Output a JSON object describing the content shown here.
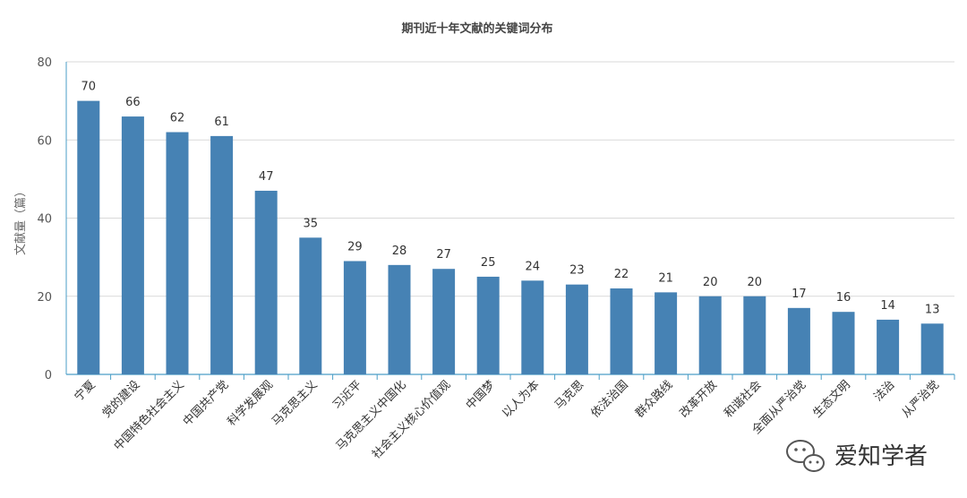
{
  "chart_data": {
    "type": "bar",
    "title": "期刊近十年文献的关键词分布",
    "ylabel": "文献量（篇）",
    "xlabel": "",
    "ylim": [
      0,
      80
    ],
    "yticks": [
      0,
      20,
      40,
      60,
      80
    ],
    "grid": true,
    "bar_color": "#4682b4",
    "categories": [
      "宁夏",
      "党的建设",
      "中国特色社会主义",
      "中国共产党",
      "科学发展观",
      "马克思主义",
      "习近平",
      "马克思主义中国化",
      "社会主义核心价值观",
      "中国梦",
      "以人为本",
      "马克思",
      "依法治国",
      "群众路线",
      "改革开放",
      "和谐社会",
      "全面从严治党",
      "生态文明",
      "法治",
      "从严治党"
    ],
    "values": [
      70,
      66,
      62,
      61,
      47,
      35,
      29,
      28,
      27,
      25,
      24,
      23,
      22,
      21,
      20,
      20,
      17,
      16,
      14,
      13
    ]
  },
  "watermark": {
    "text": "爱知学者",
    "icon": "wechat-icon"
  }
}
